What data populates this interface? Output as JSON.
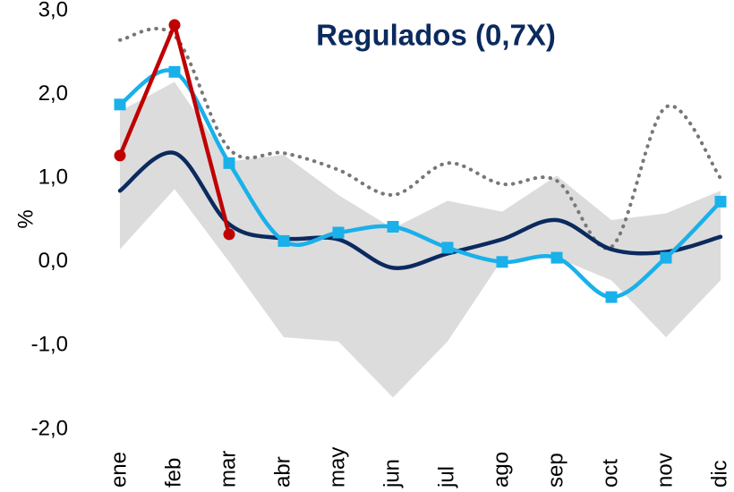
{
  "chart_data": {
    "type": "line",
    "title": "Regulados (0,7X)",
    "y_label": "%",
    "categories": [
      "ene",
      "feb",
      "mar",
      "abr",
      "may",
      "jun",
      "jul",
      "ago",
      "sep",
      "oct",
      "nov",
      "dic"
    ],
    "ylim": [
      -2,
      3
    ],
    "yticks": [
      {
        "value": -2,
        "label": "-2,0"
      },
      {
        "value": -1,
        "label": "-1,0"
      },
      {
        "value": 0,
        "label": "0,0"
      },
      {
        "value": 1,
        "label": "1,0"
      },
      {
        "value": 2,
        "label": "2,0"
      },
      {
        "value": 3,
        "label": "3,0"
      }
    ],
    "grid": false,
    "band": {
      "color": "#dcdcdc",
      "upper": [
        1.8,
        2.15,
        1.2,
        1.28,
        0.8,
        0.4,
        0.73,
        0.6,
        1.03,
        0.5,
        0.58,
        0.85
      ],
      "lower": [
        0.15,
        0.87,
        0.0,
        -0.9,
        -0.95,
        -1.62,
        -0.95,
        0.03,
        0.05,
        -0.22,
        -0.9,
        -0.22
      ]
    },
    "series": [
      {
        "color": "#777777",
        "dash": "dotted",
        "smooth": true,
        "values": [
          2.65,
          2.7,
          1.35,
          1.3,
          1.1,
          0.8,
          1.18,
          0.93,
          0.97,
          0.18,
          1.85,
          1.0
        ]
      },
      {
        "color": "#0b2a5e",
        "smooth": true,
        "values": [
          0.85,
          1.3,
          0.45,
          0.28,
          0.27,
          -0.07,
          0.1,
          0.27,
          0.5,
          0.15,
          0.12,
          0.3
        ]
      },
      {
        "color": "#1ab0ea",
        "smooth": true,
        "marker": "square",
        "values": [
          1.88,
          2.27,
          1.18,
          0.25,
          0.35,
          0.42,
          0.17,
          0.0,
          0.05,
          -0.42,
          0.05,
          0.72
        ]
      },
      {
        "color": "#c00000",
        "smooth": false,
        "marker": "circle",
        "values": [
          1.27,
          2.83,
          0.33,
          null,
          null,
          null,
          null,
          null,
          null,
          null,
          null,
          null
        ]
      }
    ]
  }
}
